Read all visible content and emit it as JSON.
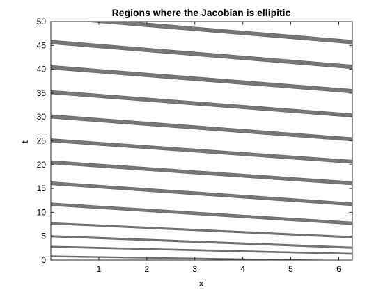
{
  "chart_data": {
    "type": "area",
    "title": "Regions where the Jacobian is ellipitic",
    "xlabel": "x",
    "ylabel": "t",
    "xlim": [
      0,
      6.283
    ],
    "ylim": [
      0,
      50
    ],
    "xticks": [
      1,
      2,
      3,
      4,
      5,
      6
    ],
    "yticks": [
      0,
      5,
      10,
      15,
      20,
      25,
      30,
      35,
      40,
      45,
      50
    ],
    "grid": false,
    "region_color": "#777777",
    "bands": [
      {
        "t_at_x0": 0.8,
        "t_at_xmax": -0.2,
        "thickness": 0.25
      },
      {
        "t_at_x0": 2.8,
        "t_at_xmax": 1.3,
        "thickness": 0.3
      },
      {
        "t_at_x0": 5.0,
        "t_at_xmax": 2.6,
        "thickness": 0.35
      },
      {
        "t_at_x0": 7.7,
        "t_at_xmax": 4.8,
        "thickness": 0.35
      },
      {
        "t_at_x0": 11.7,
        "t_at_xmax": 7.7,
        "thickness": 0.6
      },
      {
        "t_at_x0": 16.1,
        "t_at_xmax": 11.7,
        "thickness": 0.65
      },
      {
        "t_at_x0": 20.5,
        "t_at_xmax": 16.1,
        "thickness": 0.7
      },
      {
        "t_at_x0": 25.1,
        "t_at_xmax": 20.6,
        "thickness": 0.7
      },
      {
        "t_at_x0": 30.1,
        "t_at_xmax": 25.3,
        "thickness": 0.75
      },
      {
        "t_at_x0": 35.2,
        "t_at_xmax": 30.3,
        "thickness": 0.75
      },
      {
        "t_at_x0": 40.4,
        "t_at_xmax": 35.4,
        "thickness": 0.8
      },
      {
        "t_at_x0": 45.7,
        "t_at_xmax": 40.5,
        "thickness": 0.8
      },
      {
        "t_at_x0": 51.0,
        "t_at_xmax": 45.7,
        "thickness": 0.8
      }
    ]
  }
}
